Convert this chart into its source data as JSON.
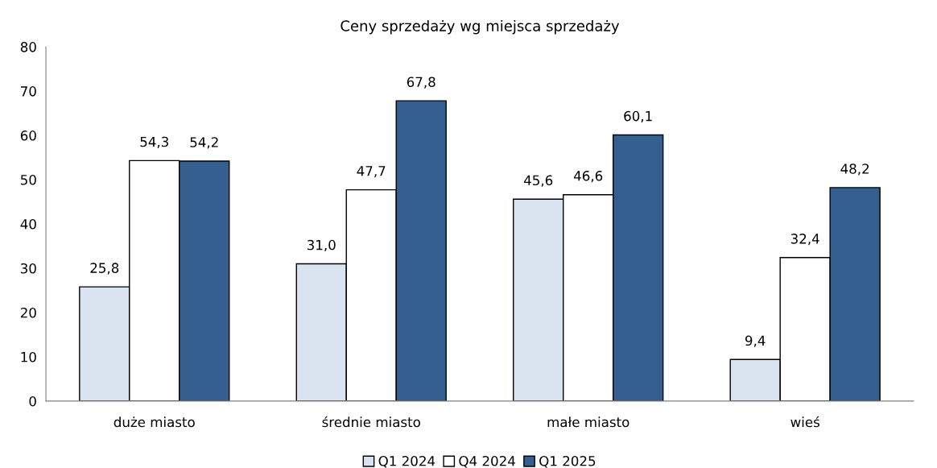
{
  "chart_data": {
    "type": "bar",
    "title": "Ceny sprzedaży wg miejsca sprzedaży",
    "categories": [
      "duże miasto",
      "średnie miasto",
      "małe miasto",
      "wieś"
    ],
    "series": [
      {
        "name": "Q1 2024",
        "color": "#dae3f0",
        "values": [
          25.8,
          31.0,
          45.6,
          9.4
        ],
        "value_labels": [
          "25,8",
          "31,0",
          "45,6",
          "9,4"
        ]
      },
      {
        "name": "Q4 2024",
        "color": "#ffffff",
        "values": [
          54.3,
          47.7,
          46.6,
          32.4
        ],
        "value_labels": [
          "54,3",
          "47,7",
          "46,6",
          "32,4"
        ]
      },
      {
        "name": "Q1 2025",
        "color": "#355f8f",
        "values": [
          54.2,
          67.8,
          60.1,
          48.2
        ],
        "value_labels": [
          "54,2",
          "67,8",
          "60,1",
          "48,2"
        ]
      }
    ],
    "ylim": [
      0,
      80
    ],
    "yticks": [
      0,
      10,
      20,
      30,
      40,
      50,
      60,
      70,
      80
    ],
    "grid": false,
    "legend": "bottom"
  }
}
